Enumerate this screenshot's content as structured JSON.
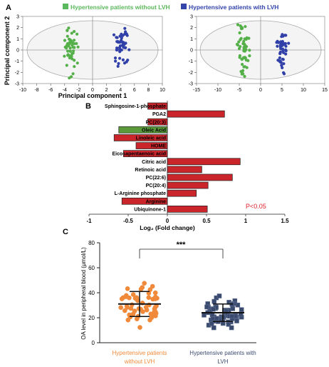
{
  "panels": {
    "a": "A",
    "b": "B",
    "c": "C"
  },
  "legend": [
    {
      "label": "Hypertensive patients without LVH",
      "color": "#5cb85c"
    },
    {
      "label": "Hypertensive patients with LVH",
      "color": "#3344aa"
    }
  ],
  "significance": {
    "p_text": "P<0.05",
    "stars": "***"
  },
  "colors": {
    "up": "#c9252b",
    "down_highlight": "#5a9a3a",
    "green_dots": "#55b04a",
    "blue_dots": "#3040a8",
    "orange_dots": "#f08a3a",
    "navy_dots": "#3a4a6e",
    "p_text": "#e0202a"
  },
  "chart_data": [
    {
      "type": "scatter",
      "xlabel": "Principal component 1",
      "ylabel": "Principal component 2",
      "xlim": [
        -10,
        10
      ],
      "ylim": [
        -3,
        3
      ],
      "xticks": [
        -10,
        -8,
        -6,
        -4,
        -2,
        0,
        2,
        4,
        6,
        8,
        10
      ],
      "yticks": [
        -3,
        -2,
        -1,
        0,
        1,
        2,
        3
      ],
      "series": [
        {
          "name": "Hypertensive patients without LVH",
          "center_x": -3.2,
          "spread_x": 0.7,
          "spread_y": 1.6,
          "n": 50
        },
        {
          "name": "Hypertensive patients with LVH",
          "center_x": 4.2,
          "spread_x": 0.8,
          "spread_y": 1.5,
          "n": 45
        }
      ]
    },
    {
      "type": "scatter",
      "xlim": [
        -15,
        15
      ],
      "ylim": [
        -3,
        3
      ],
      "xticks": [
        -15,
        -10,
        -5,
        0,
        5,
        10,
        15
      ],
      "yticks": [
        -3,
        -2,
        -1,
        0,
        1,
        2,
        3
      ],
      "series": [
        {
          "name": "Hypertensive patients without LVH",
          "center_x": -4.0,
          "spread_x": 1.3,
          "spread_y": 1.6,
          "n": 55
        },
        {
          "name": "Hypertensive patients with LVH",
          "center_x": 5.0,
          "spread_x": 1.0,
          "spread_y": 1.5,
          "n": 45
        }
      ]
    },
    {
      "type": "bar",
      "orientation": "horizontal",
      "xlabel": "Log₂ (Fold change)",
      "xlim": [
        -1,
        1.5
      ],
      "xticks": [
        -1,
        -0.5,
        0,
        0.5,
        1,
        1.5
      ],
      "categories": [
        "Sphingosine-1-phosphate",
        "PGA2",
        "PC(20:3)",
        "Oleic Acid",
        "Linoleic acid",
        "HOME",
        "Eicosapentaenoic acid",
        "Citric acid",
        "Retinoic acid",
        "PC(22:6)",
        "PC(20:4)",
        "L-Arginine phosphate",
        "Arginine",
        "Ubiquinone-1"
      ],
      "values": [
        -0.25,
        0.73,
        -0.25,
        -0.62,
        -0.68,
        -0.4,
        -0.56,
        0.93,
        0.44,
        0.83,
        0.52,
        0.37,
        -0.58,
        0.51
      ],
      "highlight": [
        false,
        false,
        false,
        true,
        false,
        false,
        false,
        false,
        false,
        false,
        false,
        false,
        false,
        false
      ],
      "annotation": "P<0.05"
    },
    {
      "type": "scatter",
      "ylabel": "OA level in peripheral blood (μmol/L)",
      "ylim": [
        0,
        80
      ],
      "yticks": [
        0,
        20,
        40,
        60,
        80
      ],
      "categories": [
        "Hypertensive patients without LVH",
        "Hypertensive patients with LVH"
      ],
      "mean": [
        31,
        24
      ],
      "sd": [
        10,
        7
      ],
      "n": [
        55,
        60
      ],
      "significance": "***"
    }
  ]
}
